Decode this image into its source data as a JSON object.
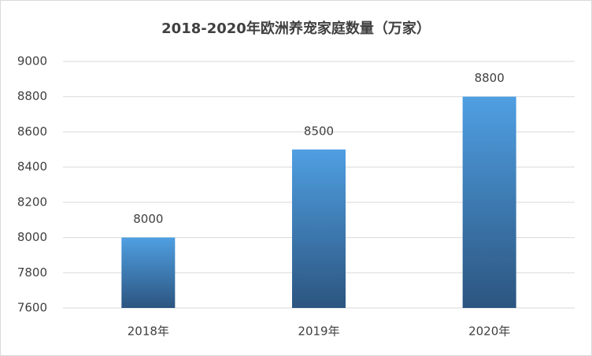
{
  "chart_data": {
    "type": "bar",
    "title": "2018-2020年欧洲养宠家庭数量（万家）",
    "categories": [
      "2018年",
      "2019年",
      "2020年"
    ],
    "values": [
      8000,
      8500,
      8800
    ],
    "colors": [
      "#4f9fe2",
      "#2c5580"
    ],
    "ylim": [
      7600,
      9000
    ],
    "yticks": [
      7600,
      7800,
      8000,
      8200,
      8400,
      8600,
      8800,
      9000
    ],
    "grid": true
  }
}
